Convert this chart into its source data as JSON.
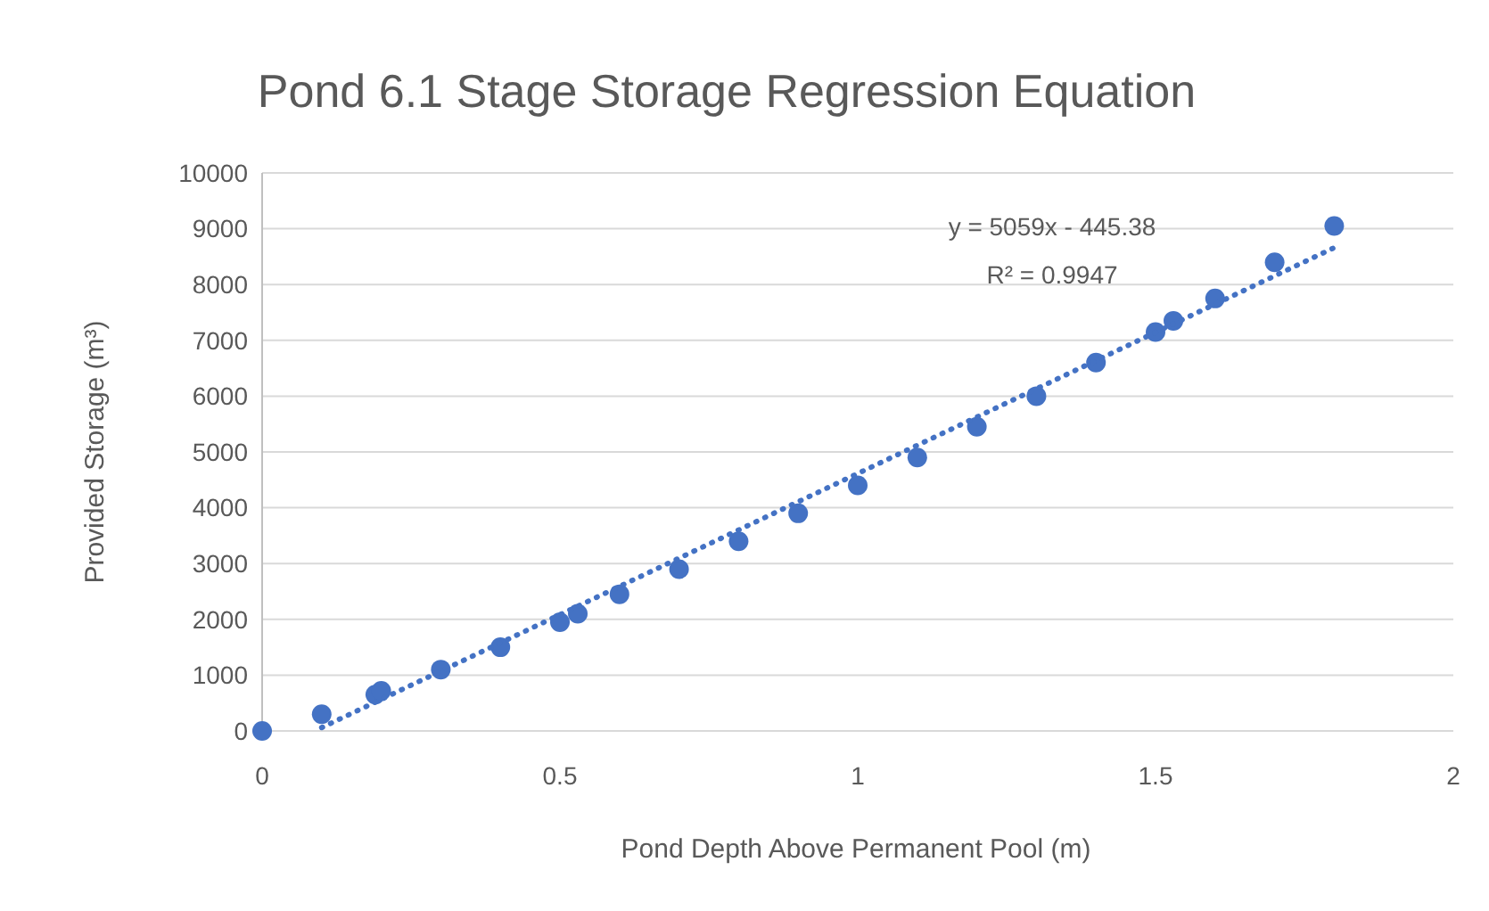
{
  "chart_data": {
    "type": "scatter",
    "title": "Pond 6.1 Stage Storage Regression Equation",
    "xlabel": "Pond Depth Above Permanent Pool (m)",
    "ylabel": "Provided Storage (m³)",
    "xlim": [
      0,
      2
    ],
    "xticks": [
      0,
      0.5,
      1,
      1.5,
      2
    ],
    "ylim": [
      0,
      10000
    ],
    "yticks": [
      0,
      1000,
      2000,
      3000,
      4000,
      5000,
      6000,
      7000,
      8000,
      9000,
      10000
    ],
    "grid": "y",
    "marker": "circle",
    "annotations": [
      "y = 5059x - 445.38",
      "R² = 0.9947"
    ],
    "series": [
      {
        "type": "scatter",
        "color": "#4472c4",
        "x": [
          0,
          0.1,
          0.19,
          0.2,
          0.3,
          0.4,
          0.5,
          0.53,
          0.6,
          0.7,
          0.8,
          0.9,
          1.0,
          1.1,
          1.2,
          1.3,
          1.4,
          1.5,
          1.53,
          1.6,
          1.7,
          1.8
        ],
        "values": [
          0,
          300,
          650,
          720,
          1100,
          1500,
          1950,
          2100,
          2450,
          2900,
          3400,
          3900,
          4400,
          4900,
          5450,
          6000,
          6600,
          7150,
          7350,
          7750,
          8400,
          9050
        ]
      },
      {
        "type": "line",
        "color": "#4472c4",
        "line_style": "dotted",
        "marker": "none",
        "x": [
          0.1,
          1.8
        ],
        "values": [
          60,
          8660
        ]
      }
    ]
  }
}
